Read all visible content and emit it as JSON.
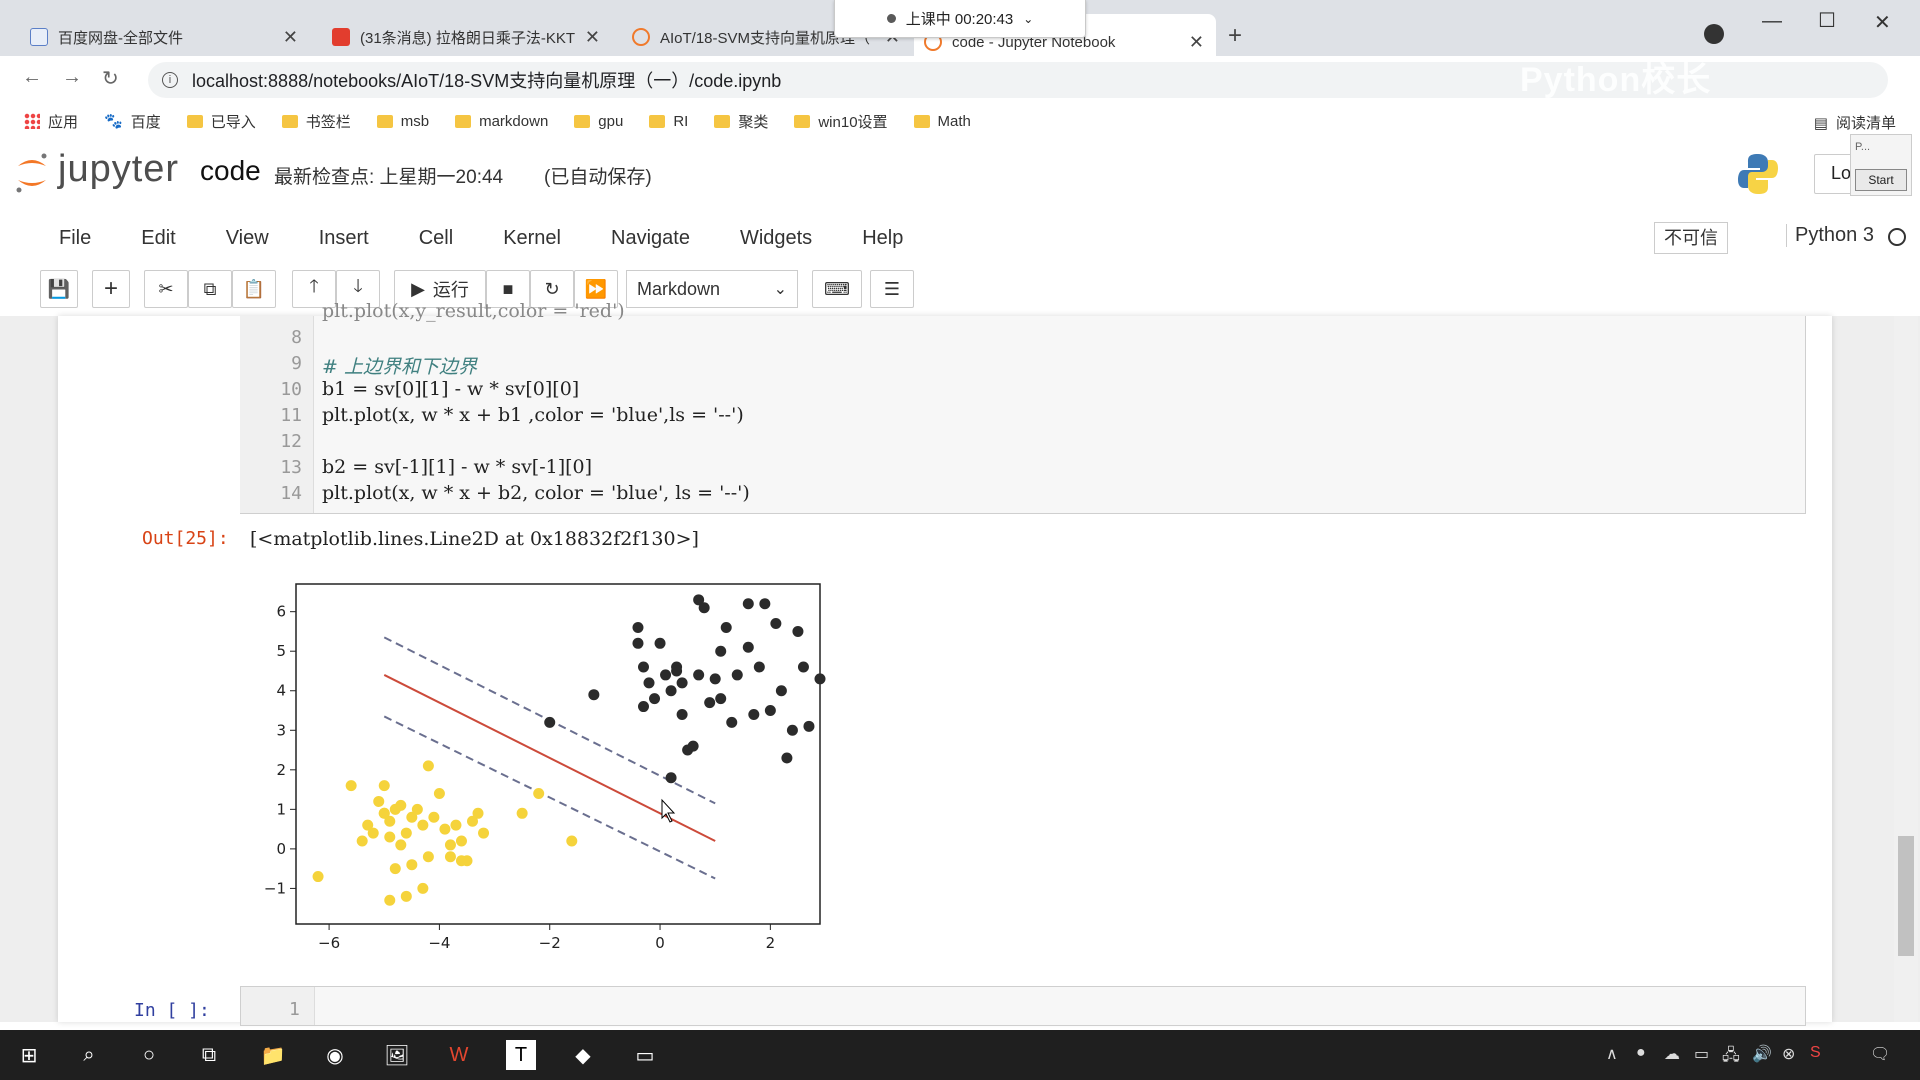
{
  "browser": {
    "tabs": [
      {
        "label": "百度网盘-全部文件"
      },
      {
        "label": "(31条消息) 拉格朗日乘子法-KKT"
      },
      {
        "label": "AIoT/18-SVM支持向量机原理（"
      },
      {
        "label": "code - Jupyter Notebook"
      }
    ],
    "class_status": "上课中 00:20:43",
    "url": "localhost:8888/notebooks/AIoT/18-SVM支持向量机原理（一）/code.ipynb",
    "watermark": "Python校长",
    "bookmarks": [
      "应用",
      "百度",
      "已导入",
      "书签栏",
      "msb",
      "markdown",
      "gpu",
      "RI",
      "聚类",
      "win10设置",
      "Math"
    ],
    "reading_list": "阅读清单"
  },
  "jupyter": {
    "brand": "jupyter",
    "notebook_name": "code",
    "checkpoint": "最新检查点: 上星期一20:44",
    "autosave": "(已自动保存)",
    "logout": "Lo",
    "overlay_p": "P...",
    "overlay_start": "Start",
    "menu": [
      "File",
      "Edit",
      "View",
      "Insert",
      "Cell",
      "Kernel",
      "Navigate",
      "Widgets",
      "Help"
    ],
    "trust": "不可信",
    "kernel_name": "Python 3",
    "run_label": "运行",
    "cell_type": "Markdown"
  },
  "cell": {
    "lines": [
      {
        "n": "8",
        "code": ""
      },
      {
        "n": "9",
        "code": "# 上边界和下边界"
      },
      {
        "n": "10",
        "code": "b1 = sv[0][1] - w * sv[0][0]"
      },
      {
        "n": "11",
        "code": "plt.plot(x, w * x + b1 ,color = 'blue',ls = '--')"
      },
      {
        "n": "12",
        "code": ""
      },
      {
        "n": "13",
        "code": "b2 = sv[-1][1] - w * sv[-1][0]"
      },
      {
        "n": "14",
        "code": "plt.plot(x, w * x + b2, color = 'blue', ls = '--')"
      }
    ],
    "out_prompt": "Out[25]:",
    "out_text": "[<matplotlib.lines.Line2D at 0x18832f2f130>]",
    "in_prompt": "In  [  ]:",
    "new_cell_line": "1"
  },
  "chart_data": {
    "type": "scatter",
    "xlim": [
      -6.6,
      2.9
    ],
    "ylim": [
      -1.9,
      6.7
    ],
    "xticks": [
      "−6",
      "−4",
      "−2",
      "0",
      "2"
    ],
    "xtick_values": [
      -6,
      -4,
      -2,
      0,
      2
    ],
    "yticks": [
      "−1",
      "0",
      "1",
      "2",
      "3",
      "4",
      "5",
      "6"
    ],
    "ytick_values": [
      -1,
      0,
      1,
      2,
      3,
      4,
      5,
      6
    ],
    "colors": {
      "class0": "#f5d33b",
      "class1": "#2b2b2b",
      "decision": "#cc4a3a",
      "margin": "#6a6f8f"
    },
    "lines": [
      {
        "style": "solid",
        "color": "decision",
        "x": [
          -5,
          1
        ],
        "y": [
          4.4,
          0.2
        ]
      },
      {
        "style": "dashed",
        "color": "margin",
        "x": [
          -5,
          1
        ],
        "y": [
          5.35,
          1.15
        ]
      },
      {
        "style": "dashed",
        "color": "margin",
        "x": [
          -5,
          1
        ],
        "y": [
          3.35,
          -0.75
        ]
      }
    ],
    "class0_points": [
      [
        -6.2,
        -0.7
      ],
      [
        -5.6,
        1.6
      ],
      [
        -5.4,
        0.2
      ],
      [
        -5.3,
        0.6
      ],
      [
        -5.2,
        0.4
      ],
      [
        -5.1,
        1.2
      ],
      [
        -5.0,
        1.6
      ],
      [
        -5.0,
        0.9
      ],
      [
        -4.9,
        0.3
      ],
      [
        -4.9,
        0.7
      ],
      [
        -4.8,
        -0.5
      ],
      [
        -4.8,
        1.0
      ],
      [
        -4.7,
        0.1
      ],
      [
        -4.7,
        1.1
      ],
      [
        -4.6,
        -1.2
      ],
      [
        -4.6,
        0.4
      ],
      [
        -4.5,
        -0.4
      ],
      [
        -4.5,
        0.8
      ],
      [
        -4.4,
        1.0
      ],
      [
        -4.3,
        0.6
      ],
      [
        -4.2,
        -0.2
      ],
      [
        -4.2,
        2.1
      ],
      [
        -4.1,
        0.8
      ],
      [
        -4.0,
        1.4
      ],
      [
        -3.9,
        0.5
      ],
      [
        -3.8,
        -0.2
      ],
      [
        -3.8,
        0.1
      ],
      [
        -3.7,
        0.6
      ],
      [
        -3.6,
        0.2
      ],
      [
        -3.5,
        -0.3
      ],
      [
        -3.4,
        0.7
      ],
      [
        -3.3,
        0.9
      ],
      [
        -3.2,
        0.4
      ],
      [
        -2.5,
        0.9
      ],
      [
        -2.2,
        1.4
      ],
      [
        -1.6,
        0.2
      ],
      [
        -4.9,
        -1.3
      ],
      [
        -4.3,
        -1.0
      ],
      [
        -5.0,
        0.9
      ],
      [
        -3.6,
        -0.3
      ]
    ],
    "class1_points": [
      [
        -2.0,
        3.2
      ],
      [
        -1.2,
        3.9
      ],
      [
        -0.4,
        5.6
      ],
      [
        -0.4,
        5.2
      ],
      [
        -0.3,
        4.6
      ],
      [
        -0.2,
        4.2
      ],
      [
        -0.1,
        3.8
      ],
      [
        0.0,
        5.2
      ],
      [
        0.1,
        4.4
      ],
      [
        0.2,
        4.0
      ],
      [
        0.2,
        1.8
      ],
      [
        0.3,
        4.6
      ],
      [
        0.4,
        3.4
      ],
      [
        0.4,
        4.2
      ],
      [
        0.5,
        2.5
      ],
      [
        0.6,
        2.6
      ],
      [
        0.7,
        6.3
      ],
      [
        0.7,
        4.4
      ],
      [
        0.8,
        6.1
      ],
      [
        0.9,
        3.7
      ],
      [
        1.0,
        4.3
      ],
      [
        1.1,
        5.0
      ],
      [
        1.1,
        3.8
      ],
      [
        1.2,
        5.6
      ],
      [
        1.3,
        3.2
      ],
      [
        1.4,
        4.4
      ],
      [
        1.6,
        6.2
      ],
      [
        1.6,
        5.1
      ],
      [
        1.7,
        3.4
      ],
      [
        1.8,
        4.6
      ],
      [
        1.9,
        6.2
      ],
      [
        2.0,
        3.5
      ],
      [
        2.1,
        5.7
      ],
      [
        2.2,
        4.0
      ],
      [
        2.3,
        2.3
      ],
      [
        2.4,
        3.0
      ],
      [
        2.5,
        5.5
      ],
      [
        2.6,
        4.6
      ],
      [
        2.9,
        4.3
      ],
      [
        2.7,
        3.1
      ],
      [
        -0.3,
        3.6
      ],
      [
        0.3,
        4.5
      ]
    ]
  }
}
